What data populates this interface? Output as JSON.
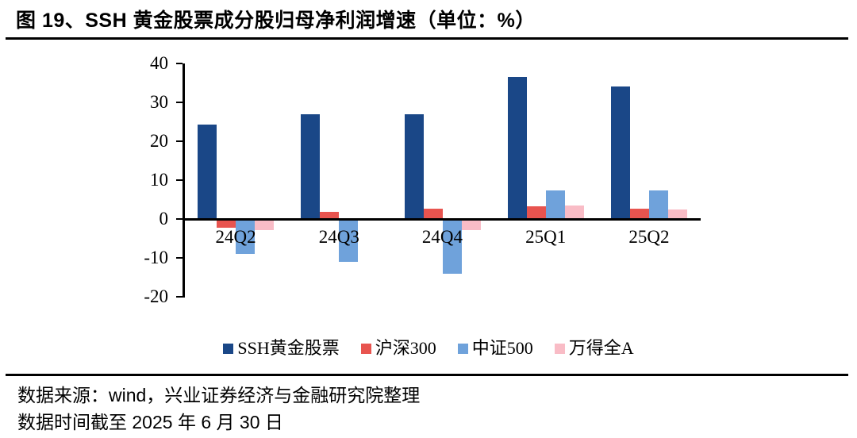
{
  "chart_data": {
    "type": "bar",
    "title": "图 19、SSH 黄金股票成分股归母净利润增速（单位：%）",
    "categories": [
      "24Q2",
      "24Q3",
      "24Q4",
      "25Q1",
      "25Q2"
    ],
    "series": [
      {
        "name": "SSH黄金股票",
        "color": "#1A4787",
        "values": [
          24.2,
          26.9,
          26.9,
          36.5,
          34.0
        ]
      },
      {
        "name": "沪深300",
        "color": "#E8544F",
        "values": [
          -2.3,
          1.8,
          2.7,
          3.3,
          2.6
        ]
      },
      {
        "name": "中证500",
        "color": "#6FA2DB",
        "values": [
          -8.9,
          -11.0,
          -14.0,
          7.4,
          7.3
        ]
      },
      {
        "name": "万得全A",
        "color": "#F9BCC6",
        "values": [
          -2.9,
          -0.3,
          -2.8,
          3.5,
          2.4
        ]
      }
    ],
    "xlabel": "",
    "ylabel": "",
    "ylim": [
      -20,
      40
    ],
    "ytick_step": 10,
    "yticks": [
      40,
      30,
      20,
      10,
      0,
      -10,
      -20
    ],
    "grid": false,
    "legend_position": "bottom"
  },
  "footer": {
    "line1": "数据来源：wind，兴业证券经济与金融研究院整理",
    "line2": "数据时间截至 2025 年 6 月 30 日"
  }
}
